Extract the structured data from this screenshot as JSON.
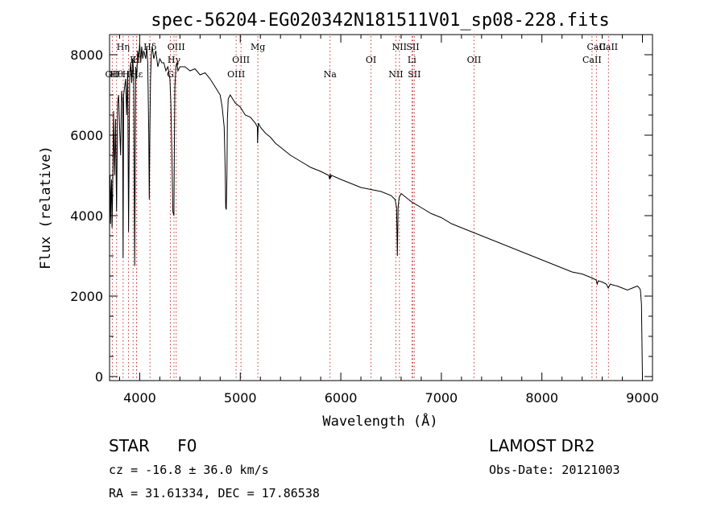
{
  "chart_data": {
    "type": "line",
    "title": "spec-56204-EG020342N181511V01_sp08-228.fits",
    "xlabel": "Wavelength (Å)",
    "ylabel": "Flux (relative)",
    "xlim": [
      3700,
      9100
    ],
    "ylim": [
      -100,
      8500
    ],
    "xticks": [
      4000,
      5000,
      6000,
      7000,
      8000,
      9000
    ],
    "yticks": [
      0,
      2000,
      4000,
      6000,
      8000
    ],
    "line_color": "#000000",
    "marker_color": "#cc3333",
    "series": [
      {
        "name": "flux",
        "x": [
          3700,
          3705,
          3710,
          3715,
          3720,
          3725,
          3730,
          3740,
          3750,
          3760,
          3770,
          3780,
          3790,
          3800,
          3810,
          3820,
          3830,
          3835,
          3840,
          3850,
          3860,
          3870,
          3880,
          3889,
          3900,
          3910,
          3920,
          3930,
          3940,
          3950,
          3960,
          3970,
          3980,
          3990,
          4000,
          4010,
          4020,
          4030,
          4040,
          4050,
          4060,
          4070,
          4080,
          4090,
          4095,
          4101,
          4108,
          4115,
          4125,
          4140,
          4160,
          4180,
          4200,
          4220,
          4240,
          4260,
          4280,
          4300,
          4310,
          4320,
          4330,
          4340,
          4345,
          4350,
          4360,
          4370,
          4380,
          4400,
          4450,
          4500,
          4550,
          4600,
          4650,
          4700,
          4750,
          4800,
          4820,
          4840,
          4850,
          4855,
          4861,
          4867,
          4872,
          4880,
          4900,
          4950,
          5000,
          5050,
          5100,
          5150,
          5170,
          5172,
          5175,
          5180,
          5200,
          5250,
          5300,
          5350,
          5400,
          5450,
          5500,
          5600,
          5700,
          5800,
          5880,
          5890,
          5895,
          5900,
          5910,
          6000,
          6100,
          6200,
          6300,
          6400,
          6500,
          6540,
          6555,
          6563,
          6570,
          6580,
          6600,
          6700,
          6800,
          6900,
          7000,
          7100,
          7200,
          7300,
          7400,
          7500,
          7600,
          7700,
          7800,
          7900,
          8000,
          8100,
          8200,
          8300,
          8400,
          8450,
          8500,
          8540,
          8550,
          8560,
          8600,
          8640,
          8660,
          8680,
          8700,
          8750,
          8800,
          8850,
          8900,
          8950,
          8970,
          8980,
          8990,
          9000
        ],
        "y": [
          4200,
          5000,
          3800,
          4600,
          4900,
          3700,
          4400,
          6600,
          5000,
          6400,
          4100,
          6800,
          7000,
          6200,
          5500,
          7100,
          6800,
          2950,
          7000,
          7200,
          7400,
          6500,
          7600,
          3600,
          7500,
          7800,
          7300,
          7900,
          7500,
          2750,
          7700,
          7400,
          8100,
          7900,
          8300,
          7800,
          8200,
          7900,
          8100,
          8000,
          7900,
          8200,
          7800,
          6000,
          4400,
          6200,
          7400,
          8000,
          8200,
          7900,
          8100,
          7700,
          7900,
          7800,
          7800,
          7600,
          7700,
          7400,
          6800,
          5500,
          4100,
          4000,
          5800,
          7200,
          7700,
          7800,
          7600,
          7700,
          7700,
          7600,
          7650,
          7500,
          7550,
          7400,
          7200,
          7000,
          6700,
          6200,
          5200,
          4200,
          4150,
          5000,
          6400,
          6900,
          7000,
          6800,
          6700,
          6500,
          6450,
          6300,
          6200,
          5800,
          6000,
          6300,
          6200,
          6050,
          5950,
          5800,
          5700,
          5600,
          5500,
          5350,
          5200,
          5100,
          5000,
          4900,
          5050,
          4950,
          5000,
          4900,
          4800,
          4700,
          4650,
          4600,
          4500,
          4400,
          4200,
          3000,
          4200,
          4450,
          4550,
          4350,
          4200,
          4050,
          3950,
          3800,
          3700,
          3600,
          3500,
          3400,
          3300,
          3200,
          3100,
          3000,
          2900,
          2800,
          2700,
          2600,
          2550,
          2500,
          2450,
          2400,
          2300,
          2380,
          2350,
          2300,
          2200,
          2300,
          2280,
          2250,
          2200,
          2150,
          2200,
          2250,
          2200,
          2150,
          1800,
          0
        ]
      }
    ],
    "lines": [
      {
        "wl": 3727,
        "label": "OII",
        "tier": 3
      },
      {
        "wl": 3770,
        "label": "Hθ",
        "tier": 3
      },
      {
        "wl": 3835,
        "label": "Hη",
        "tier": 1
      },
      {
        "wl": 3889,
        "label": "Hζ",
        "tier": 3
      },
      {
        "wl": 3934,
        "label": "K",
        "tier": 2
      },
      {
        "wl": 3968,
        "label": "H",
        "tier": 2
      },
      {
        "wl": 3970,
        "label": "Hε",
        "tier": 3
      },
      {
        "wl": 4102,
        "label": "Hδ",
        "tier": 1
      },
      {
        "wl": 4305,
        "label": "G",
        "tier": 3
      },
      {
        "wl": 4341,
        "label": "Hγ",
        "tier": 2
      },
      {
        "wl": 4363,
        "label": "OIII",
        "tier": 1
      },
      {
        "wl": 4959,
        "label": "OIII",
        "tier": 3
      },
      {
        "wl": 5007,
        "label": "OIII",
        "tier": 2
      },
      {
        "wl": 5175,
        "label": "Mg",
        "tier": 1
      },
      {
        "wl": 5893,
        "label": "Na",
        "tier": 3
      },
      {
        "wl": 6300,
        "label": "OI",
        "tier": 2
      },
      {
        "wl": 6548,
        "label": "NII",
        "tier": 3
      },
      {
        "wl": 6583,
        "label": "NII",
        "tier": 1
      },
      {
        "wl": 6707,
        "label": "Li",
        "tier": 2
      },
      {
        "wl": 6716,
        "label": "SII",
        "tier": 1
      },
      {
        "wl": 6731,
        "label": "SII",
        "tier": 3
      },
      {
        "wl": 7325,
        "label": "OII",
        "tier": 2
      },
      {
        "wl": 8498,
        "label": "CaII",
        "tier": 2
      },
      {
        "wl": 8542,
        "label": "CaII",
        "tier": 1
      },
      {
        "wl": 8662,
        "label": "CaII",
        "tier": 1
      }
    ]
  },
  "footer": {
    "class_label": "STAR",
    "subclass": "F0",
    "survey": "LAMOST DR2",
    "cz": "cz = -16.8 ± 36.0 km/s",
    "obs_date": "Obs-Date: 20121003",
    "coords": "RA =  31.61334, DEC =  17.86538"
  }
}
